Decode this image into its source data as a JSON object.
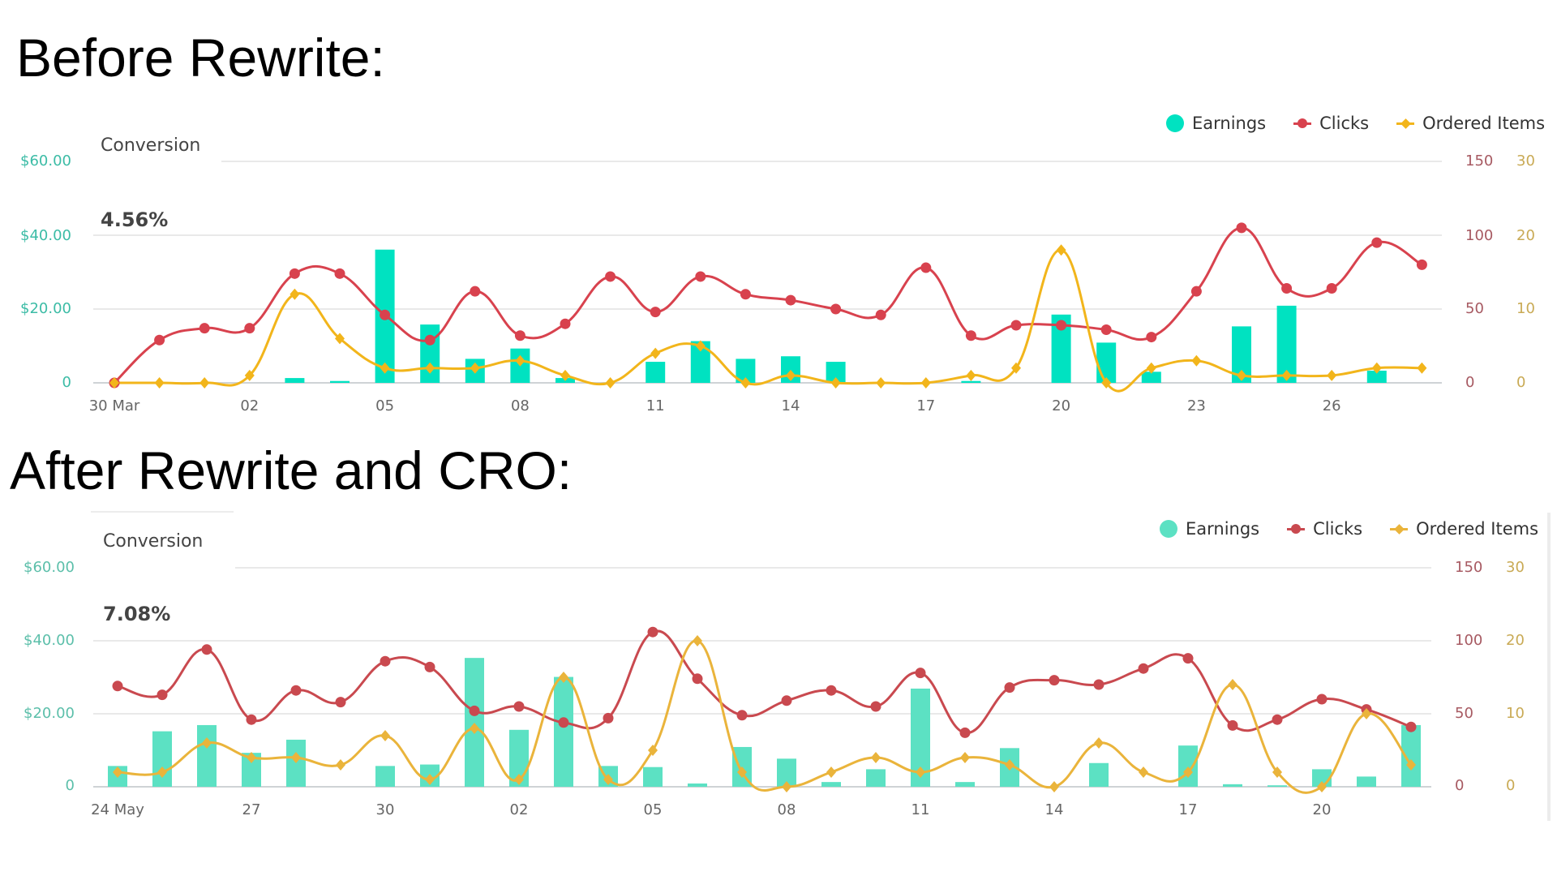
{
  "titles": {
    "before": "Before Rewrite:",
    "after": "After Rewrite and CRO:"
  },
  "legend": {
    "earnings": "Earnings",
    "clicks": "Clicks",
    "ordered_items": "Ordered Items"
  },
  "charts": [
    {
      "conversion_label": "Conversion",
      "conversion_value": "4.56%",
      "left_axis_labels": [
        "$60.00",
        "$40.00",
        "$20.00",
        "0"
      ],
      "clicks_axis_labels": [
        "150",
        "100",
        "50",
        "0"
      ],
      "ordered_axis_labels": [
        "30",
        "20",
        "10",
        "0"
      ],
      "x_labels": [
        "30 Mar",
        "02",
        "05",
        "08",
        "11",
        "14",
        "17",
        "20",
        "23",
        "26"
      ],
      "colors": {
        "earnings": "#00E2C1",
        "clicks": "#D8424E",
        "ordered_items": "#F2B51B",
        "left_axis": "#3CBCA6",
        "clicks_axis": "#A75A62",
        "ordered_axis": "#C9AA55"
      }
    },
    {
      "conversion_label": "Conversion",
      "conversion_value": "7.08%",
      "left_axis_labels": [
        "$60.00",
        "$40.00",
        "$20.00",
        "0"
      ],
      "clicks_axis_labels": [
        "150",
        "100",
        "50",
        "0"
      ],
      "ordered_axis_labels": [
        "30",
        "20",
        "10",
        "0"
      ],
      "x_labels": [
        "24 May",
        "27",
        "30",
        "02",
        "05",
        "08",
        "11",
        "14",
        "17",
        "20"
      ],
      "colors": {
        "earnings": "#5CE1C3",
        "clicks": "#C9494F",
        "ordered_items": "#EAB43B",
        "left_axis": "#5CBFAA",
        "clicks_axis": "#A75A62",
        "ordered_axis": "#C9AA55"
      }
    }
  ],
  "chart_data": [
    {
      "type": "bar",
      "title": "Before Rewrite: Conversion 4.56%",
      "x": [
        "30 Mar",
        "31 Mar",
        "01 Apr",
        "02 Apr",
        "03 Apr",
        "04 Apr",
        "05 Apr",
        "06 Apr",
        "07 Apr",
        "08 Apr",
        "09 Apr",
        "10 Apr",
        "11 Apr",
        "12 Apr",
        "13 Apr",
        "14 Apr",
        "15 Apr",
        "16 Apr",
        "17 Apr",
        "18 Apr",
        "19 Apr",
        "20 Apr",
        "21 Apr",
        "22 Apr",
        "23 Apr",
        "24 Apr",
        "25 Apr",
        "26 Apr",
        "27 Apr",
        "28 Apr"
      ],
      "tick_labels": [
        "30 Mar",
        "02",
        "05",
        "08",
        "11",
        "14",
        "17",
        "20",
        "23",
        "26"
      ],
      "series": [
        {
          "name": "Earnings",
          "type": "bar",
          "axis": "left",
          "values": [
            0,
            0,
            0,
            0,
            1.3,
            0.5,
            36.1,
            15.8,
            6.5,
            9.3,
            1.3,
            0,
            5.7,
            11.3,
            6.5,
            7.2,
            5.7,
            0,
            0,
            0.5,
            0,
            18.5,
            10.9,
            3.0,
            0,
            15.3,
            20.9,
            0,
            3.3,
            0
          ]
        },
        {
          "name": "Clicks",
          "type": "line",
          "axis": "right-1",
          "values": [
            0,
            29,
            37,
            37,
            74,
            74,
            46,
            29,
            62,
            32,
            40,
            72,
            48,
            72,
            60,
            56,
            50,
            46,
            78,
            32,
            39,
            39,
            36,
            31,
            62,
            105,
            64,
            64,
            95,
            80
          ]
        },
        {
          "name": "Ordered Items",
          "type": "line",
          "axis": "right-2",
          "values": [
            0,
            0,
            0,
            1,
            12,
            6,
            2,
            2,
            2,
            3,
            1,
            0,
            4,
            5,
            0,
            1,
            0,
            0,
            0,
            1,
            2,
            18,
            0,
            2,
            3,
            1,
            1,
            1,
            2,
            2
          ]
        }
      ],
      "left_axis": {
        "label": "Earnings",
        "range": [
          0,
          60
        ],
        "ticks": [
          "$60.00",
          "$40.00",
          "$20.00",
          "0"
        ]
      },
      "right_axis_1": {
        "label": "Clicks",
        "range": [
          0,
          150
        ],
        "ticks": [
          "150",
          "100",
          "50",
          "0"
        ]
      },
      "right_axis_2": {
        "label": "Ordered Items",
        "range": [
          0,
          30
        ],
        "ticks": [
          "30",
          "20",
          "10",
          "0"
        ]
      },
      "grid": true,
      "legend_position": "top-right"
    },
    {
      "type": "bar",
      "title": "After Rewrite and CRO: Conversion 7.08%",
      "x": [
        "24 May",
        "25 May",
        "26 May",
        "27 May",
        "28 May",
        "29 May",
        "30 May",
        "31 May",
        "01 Jun",
        "02 Jun",
        "03 Jun",
        "04 Jun",
        "05 Jun",
        "06 Jun",
        "07 Jun",
        "08 Jun",
        "09 Jun",
        "10 Jun",
        "11 Jun",
        "12 Jun",
        "13 Jun",
        "14 Jun",
        "15 Jun",
        "16 Jun",
        "17 Jun",
        "18 Jun",
        "19 Jun",
        "20 Jun",
        "21 Jun",
        "22 Jun"
      ],
      "tick_labels": [
        "24 May",
        "27",
        "30",
        "02",
        "05",
        "08",
        "11",
        "14",
        "17",
        "20"
      ],
      "series": [
        {
          "name": "Earnings",
          "type": "bar",
          "axis": "left",
          "values": [
            5.7,
            15.2,
            16.9,
            9.3,
            12.9,
            0,
            5.7,
            6.1,
            35.3,
            15.6,
            30.1,
            5.7,
            5.4,
            0.9,
            10.9,
            7.7,
            1.3,
            4.8,
            26.9,
            1.3,
            10.6,
            0,
            6.5,
            0,
            11.3,
            0.7,
            0.4,
            4.8,
            2.8,
            16.9
          ]
        },
        {
          "name": "Clicks",
          "type": "line",
          "axis": "right-1",
          "values": [
            69,
            63,
            94,
            46,
            66,
            58,
            86,
            82,
            52,
            55,
            44,
            47,
            106,
            74,
            49,
            59,
            66,
            55,
            78,
            37,
            68,
            73,
            70,
            81,
            88,
            42,
            46,
            60,
            53,
            41
          ]
        },
        {
          "name": "Ordered Items",
          "type": "line",
          "axis": "right-2",
          "values": [
            2,
            2,
            6,
            4,
            4,
            3,
            7,
            1,
            8,
            1,
            15,
            1,
            5,
            20,
            2,
            0,
            2,
            4,
            2,
            4,
            3,
            0,
            6,
            2,
            2,
            14,
            2,
            0,
            10,
            3
          ]
        }
      ],
      "left_axis": {
        "label": "Earnings",
        "range": [
          0,
          60
        ],
        "ticks": [
          "$60.00",
          "$40.00",
          "$20.00",
          "0"
        ]
      },
      "right_axis_1": {
        "label": "Clicks",
        "range": [
          0,
          150
        ],
        "ticks": [
          "150",
          "100",
          "50",
          "0"
        ]
      },
      "right_axis_2": {
        "label": "Ordered Items",
        "range": [
          0,
          30
        ],
        "ticks": [
          "30",
          "20",
          "10",
          "0"
        ]
      },
      "grid": true,
      "legend_position": "top-right"
    }
  ]
}
